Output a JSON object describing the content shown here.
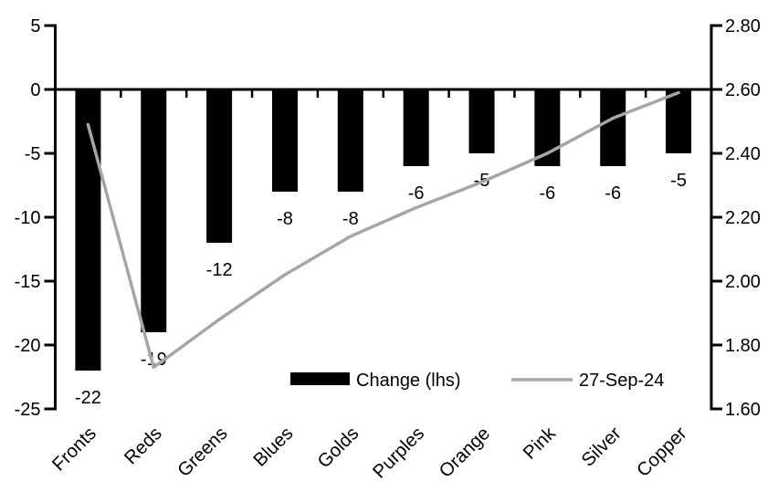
{
  "chart_data": {
    "type": "bar+line",
    "title": "",
    "categories": [
      "Fronts",
      "Reds",
      "Greens",
      "Blues",
      "Golds",
      "Purples",
      "Orange",
      "Pink",
      "Silver",
      "Copper"
    ],
    "series": [
      {
        "name": "Change (lhs)",
        "type": "bar",
        "axis": "left",
        "color": "#000000",
        "values": [
          -22,
          -19,
          -12,
          -8,
          -8,
          -6,
          -5,
          -6,
          -6,
          -5
        ],
        "data_labels": [
          "-22",
          "-19",
          "-12",
          "-8",
          "-8",
          "-6",
          "-5",
          "-6",
          "-6",
          "-5"
        ]
      },
      {
        "name": "27-Sep-24",
        "type": "line",
        "axis": "right",
        "color": "#a6a6a6",
        "values": [
          2.49,
          1.73,
          1.88,
          2.02,
          2.14,
          2.23,
          2.31,
          2.4,
          2.51,
          2.59
        ]
      }
    ],
    "left_axis": {
      "min": -25,
      "max": 5,
      "step": 5,
      "ticks": [
        "5",
        "0",
        "-5",
        "-10",
        "-15",
        "-20",
        "-25"
      ]
    },
    "right_axis": {
      "min": 1.6,
      "max": 2.8,
      "step": 0.2,
      "ticks": [
        "2.80",
        "2.60",
        "2.40",
        "2.20",
        "2.00",
        "1.80",
        "1.60"
      ]
    },
    "legend": {
      "position": "bottom-inside",
      "items": [
        {
          "label": "Change (lhs)",
          "swatch": "bar",
          "color": "#000000"
        },
        {
          "label": "27-Sep-24",
          "swatch": "line",
          "color": "#a6a6a6"
        }
      ]
    },
    "grid": false,
    "colors": {
      "bar": "#000000",
      "line": "#a6a6a6",
      "axis": "#000000",
      "text": "#000000",
      "background": "#ffffff"
    }
  }
}
